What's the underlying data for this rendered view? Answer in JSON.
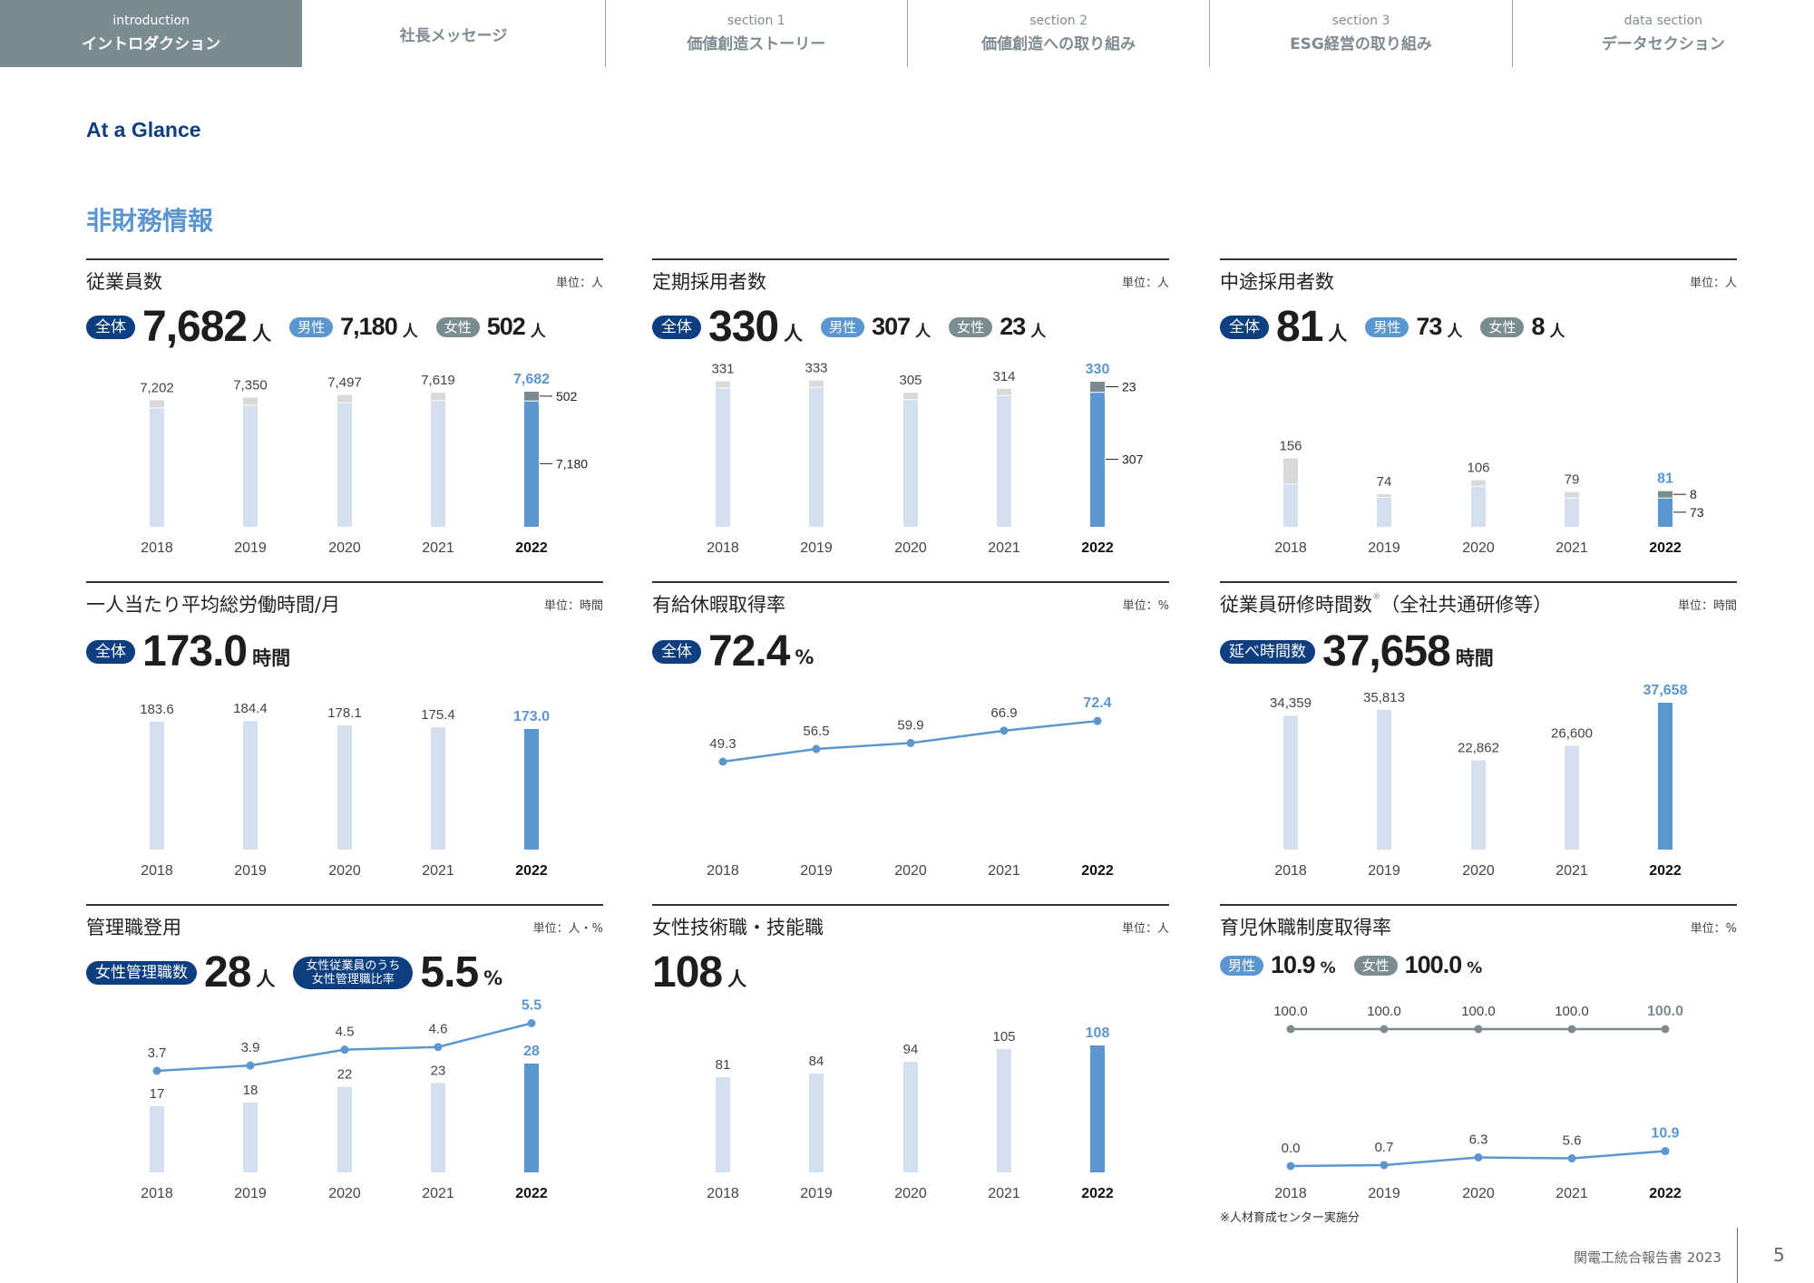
{
  "nav": {
    "tabs": [
      {
        "sub": "introduction",
        "label": "イントロダクション",
        "active": true
      },
      {
        "sub": "",
        "label": "社長メッセージ",
        "active": false
      },
      {
        "sub": "section 1",
        "label": "価値創造ストーリー",
        "active": false
      },
      {
        "sub": "section 2",
        "label": "価値創造への取り組み",
        "active": false
      },
      {
        "sub": "section 3",
        "label": "ESG経営の取り組み",
        "active": false
      },
      {
        "sub": "data section",
        "label": "データセクション",
        "active": false
      }
    ]
  },
  "header": {
    "section_title": "At a Glance",
    "heading": "非財務情報"
  },
  "colors": {
    "navy": "#0d3e80",
    "blue": "#5b96d0",
    "gray": "#7a8c8f",
    "bar_light": "#d3dfee",
    "cap_light": "#d9d9d9"
  },
  "panels": [
    {
      "title": "従業員数",
      "unit": "単位：人",
      "stats": [
        {
          "badge": "全体",
          "badge_color": "navy",
          "value": "7,682",
          "unit": "人",
          "size": "big"
        },
        {
          "badge": "男性",
          "badge_color": "blue",
          "value": "7,180",
          "unit": "人",
          "size": "mid"
        },
        {
          "badge": "女性",
          "badge_color": "gray",
          "value": "502",
          "unit": "人",
          "size": "mid"
        }
      ],
      "chart_data": {
        "type": "bar",
        "stacked": true,
        "categories": [
          "2018",
          "2019",
          "2020",
          "2021",
          "2022"
        ],
        "values": [
          7202,
          7350,
          7497,
          7619,
          7682
        ],
        "labels": [
          "7,202",
          "7,350",
          "7,497",
          "7,619",
          "7,682"
        ],
        "breakdown_2022": {
          "male": 7180,
          "female": 502,
          "male_label": "7,180",
          "female_label": "502"
        }
      }
    },
    {
      "title": "定期採用者数",
      "unit": "単位：人",
      "stats": [
        {
          "badge": "全体",
          "badge_color": "navy",
          "value": "330",
          "unit": "人",
          "size": "big"
        },
        {
          "badge": "男性",
          "badge_color": "blue",
          "value": "307",
          "unit": "人",
          "size": "mid"
        },
        {
          "badge": "女性",
          "badge_color": "gray",
          "value": "23",
          "unit": "人",
          "size": "mid"
        }
      ],
      "chart_data": {
        "type": "bar",
        "stacked": true,
        "categories": [
          "2018",
          "2019",
          "2020",
          "2021",
          "2022"
        ],
        "values": [
          331,
          333,
          305,
          314,
          330
        ],
        "labels": [
          "331",
          "333",
          "305",
          "314",
          "330"
        ],
        "breakdown_2022": {
          "male": 307,
          "female": 23,
          "male_label": "307",
          "female_label": "23"
        }
      }
    },
    {
      "title": "中途採用者数",
      "unit": "単位：人",
      "stats": [
        {
          "badge": "全体",
          "badge_color": "navy",
          "value": "81",
          "unit": "人",
          "size": "big"
        },
        {
          "badge": "男性",
          "badge_color": "blue",
          "value": "73",
          "unit": "人",
          "size": "mid"
        },
        {
          "badge": "女性",
          "badge_color": "gray",
          "value": "8",
          "unit": "人",
          "size": "mid"
        }
      ],
      "chart_data": {
        "type": "bar",
        "stacked": true,
        "categories": [
          "2018",
          "2019",
          "2020",
          "2021",
          "2022"
        ],
        "values": [
          156,
          74,
          106,
          79,
          81
        ],
        "labels": [
          "156",
          "74",
          "106",
          "79",
          "81"
        ],
        "breakdown_2022": {
          "male": 73,
          "female": 8,
          "male_label": "73",
          "female_label": "8"
        }
      }
    },
    {
      "title": "一人当たり平均総労働時間/月",
      "unit": "単位：時間",
      "stats": [
        {
          "badge": "全体",
          "badge_color": "navy",
          "value": "173.0",
          "unit": "時間",
          "size": "big"
        }
      ],
      "chart_data": {
        "type": "bar",
        "categories": [
          "2018",
          "2019",
          "2020",
          "2021",
          "2022"
        ],
        "values": [
          183.6,
          184.4,
          178.1,
          175.4,
          173.0
        ],
        "labels": [
          "183.6",
          "184.4",
          "178.1",
          "175.4",
          "173.0"
        ]
      }
    },
    {
      "title": "有給休暇取得率",
      "unit": "単位：%",
      "stats": [
        {
          "badge": "全体",
          "badge_color": "navy",
          "value": "72.4",
          "unit": "%",
          "size": "big"
        }
      ],
      "chart_data": {
        "type": "line",
        "categories": [
          "2018",
          "2019",
          "2020",
          "2021",
          "2022"
        ],
        "series": [
          {
            "values": [
              49.3,
              56.5,
              59.9,
              66.9,
              72.4
            ],
            "labels": [
              "49.3",
              "56.5",
              "59.9",
              "66.9",
              "72.4"
            ],
            "color": "#5b96d0"
          }
        ]
      }
    },
    {
      "title": "従業員研修時間数",
      "title_note": "※",
      "title_suffix": "（全社共通研修等）",
      "unit": "単位：時間",
      "stats": [
        {
          "badge": "延べ時間数",
          "badge_color": "navy",
          "value": "37,658",
          "unit": "時間",
          "size": "big"
        }
      ],
      "chart_data": {
        "type": "bar",
        "categories": [
          "2018",
          "2019",
          "2020",
          "2021",
          "2022"
        ],
        "values": [
          34359,
          35813,
          22862,
          26600,
          37658
        ],
        "labels": [
          "34,359",
          "35,813",
          "22,862",
          "26,600",
          "37,658"
        ]
      }
    },
    {
      "title": "管理職登用",
      "unit": "単位：人・%",
      "stats": [
        {
          "badge": "女性管理職数",
          "badge_color": "navy",
          "value": "28",
          "unit": "人",
          "size": "big"
        },
        {
          "badge": "女性従業員のうち\n女性管理職比率",
          "badge_color": "navy",
          "value": "5.5",
          "unit": "%",
          "size": "big"
        }
      ],
      "chart_data": {
        "type": "bar+line",
        "categories": [
          "2018",
          "2019",
          "2020",
          "2021",
          "2022"
        ],
        "values": [
          17,
          18,
          22,
          23,
          28
        ],
        "labels": [
          "17",
          "18",
          "22",
          "23",
          "28"
        ],
        "series": [
          {
            "values": [
              3.7,
              3.9,
              4.5,
              4.6,
              5.5
            ],
            "labels": [
              "3.7",
              "3.9",
              "4.5",
              "4.6",
              "5.5"
            ],
            "color": "#5b96d0"
          }
        ]
      }
    },
    {
      "title": "女性技術職・技能職",
      "unit": "単位：人",
      "stats": [
        {
          "badge": "",
          "badge_color": "",
          "value": "108",
          "unit": "人",
          "size": "big"
        }
      ],
      "chart_data": {
        "type": "bar",
        "categories": [
          "2018",
          "2019",
          "2020",
          "2021",
          "2022"
        ],
        "values": [
          81,
          84,
          94,
          105,
          108
        ],
        "labels": [
          "81",
          "84",
          "94",
          "105",
          "108"
        ]
      }
    },
    {
      "title": "育児休職制度取得率",
      "unit": "単位：%",
      "stats": [
        {
          "badge": "男性",
          "badge_color": "blue",
          "value": "10.9",
          "unit": "%",
          "size": "mid"
        },
        {
          "badge": "女性",
          "badge_color": "gray",
          "value": "100.0",
          "unit": "%",
          "size": "mid"
        }
      ],
      "chart_data": {
        "type": "line",
        "categories": [
          "2018",
          "2019",
          "2020",
          "2021",
          "2022"
        ],
        "series": [
          {
            "name": "女性",
            "values": [
              100.0,
              100.0,
              100.0,
              100.0,
              100.0
            ],
            "labels": [
              "100.0",
              "100.0",
              "100.0",
              "100.0",
              "100.0"
            ],
            "color": "#7a8c8f"
          },
          {
            "name": "男性",
            "values": [
              0.0,
              0.7,
              6.3,
              5.6,
              10.9
            ],
            "labels": [
              "0.0",
              "0.7",
              "6.3",
              "5.6",
              "10.9"
            ],
            "color": "#5b96d0"
          }
        ]
      }
    }
  ],
  "footnote": "※人材育成センター実施分",
  "footer": {
    "report": "関電工統合報告書 2023",
    "page": "5"
  }
}
